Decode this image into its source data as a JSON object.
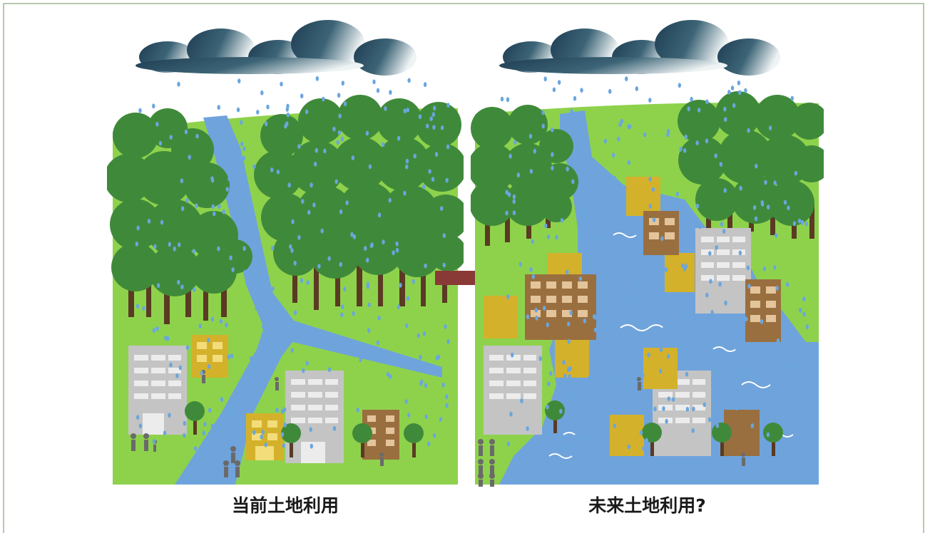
{
  "illustration": {
    "left_panel": {
      "caption": "当前土地利用",
      "scene": "current"
    },
    "right_panel": {
      "caption": "未来土地利用?",
      "scene": "future"
    },
    "transition_arrow": "right-arrow"
  },
  "colors": {
    "grass": "#8ed24c",
    "forest": "#3f8a3a",
    "trunk": "#5a3a22",
    "river": "#6fa3dc",
    "cloud_dark": "#2a4a5e",
    "cloud_light": "#e9f0f2",
    "rain": "#6aa6de",
    "building_gray": "#c4c4c4",
    "building_yellow": "#d4b12a",
    "building_brown": "#9a6f3f",
    "arrow": "#8a3a36",
    "people": "#6a6a6a"
  }
}
